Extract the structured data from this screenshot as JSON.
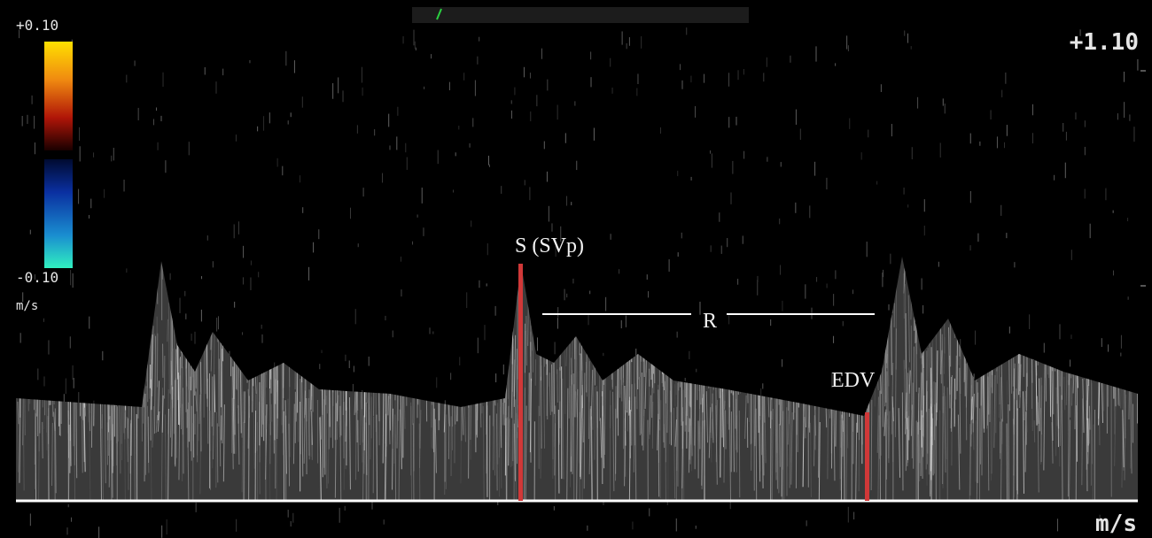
{
  "colorbar": {
    "max_label": "+0.10",
    "min_label": "-0.10",
    "unit": "m/s"
  },
  "scale": {
    "top_label": "+1.10",
    "unit": "m/s"
  },
  "annotations": {
    "systolic": "S (SVp)",
    "resistance": "R",
    "end_diastolic": "EDV"
  }
}
